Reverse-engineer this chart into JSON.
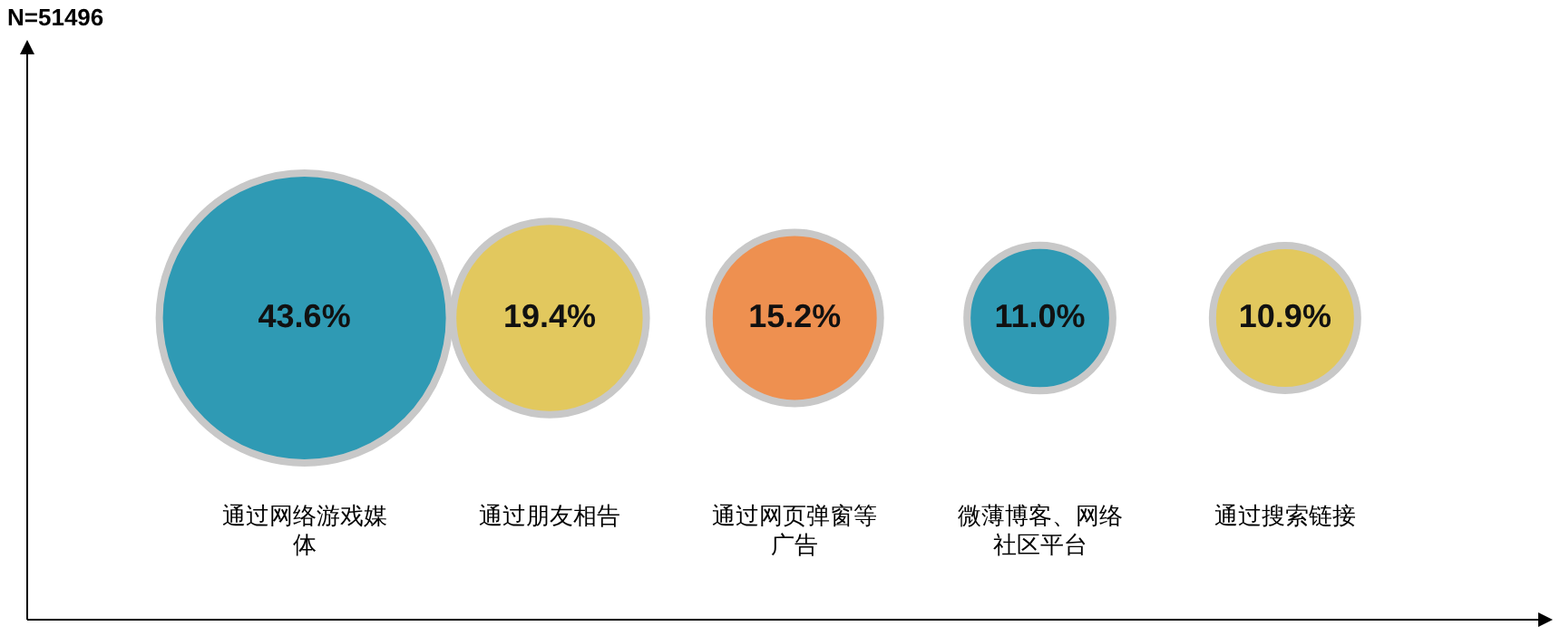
{
  "chart_data": {
    "type": "other",
    "ylabel": "N=51496",
    "categories": [
      "通过网络游戏媒体",
      "通过朋友相告",
      "通过网页弹窗等广告",
      "微薄博客、网络社区平台",
      "通过搜索链接"
    ],
    "values": [
      43.6,
      19.4,
      15.2,
      11.0,
      10.9
    ],
    "colors": [
      "#2f9ab4",
      "#e2c85e",
      "#ee9050",
      "#2f9ab4",
      "#e2c85e"
    ],
    "value_labels": [
      "43.6%",
      "19.4%",
      "15.2%",
      "11.0%",
      "10.9%"
    ],
    "legend": false
  }
}
